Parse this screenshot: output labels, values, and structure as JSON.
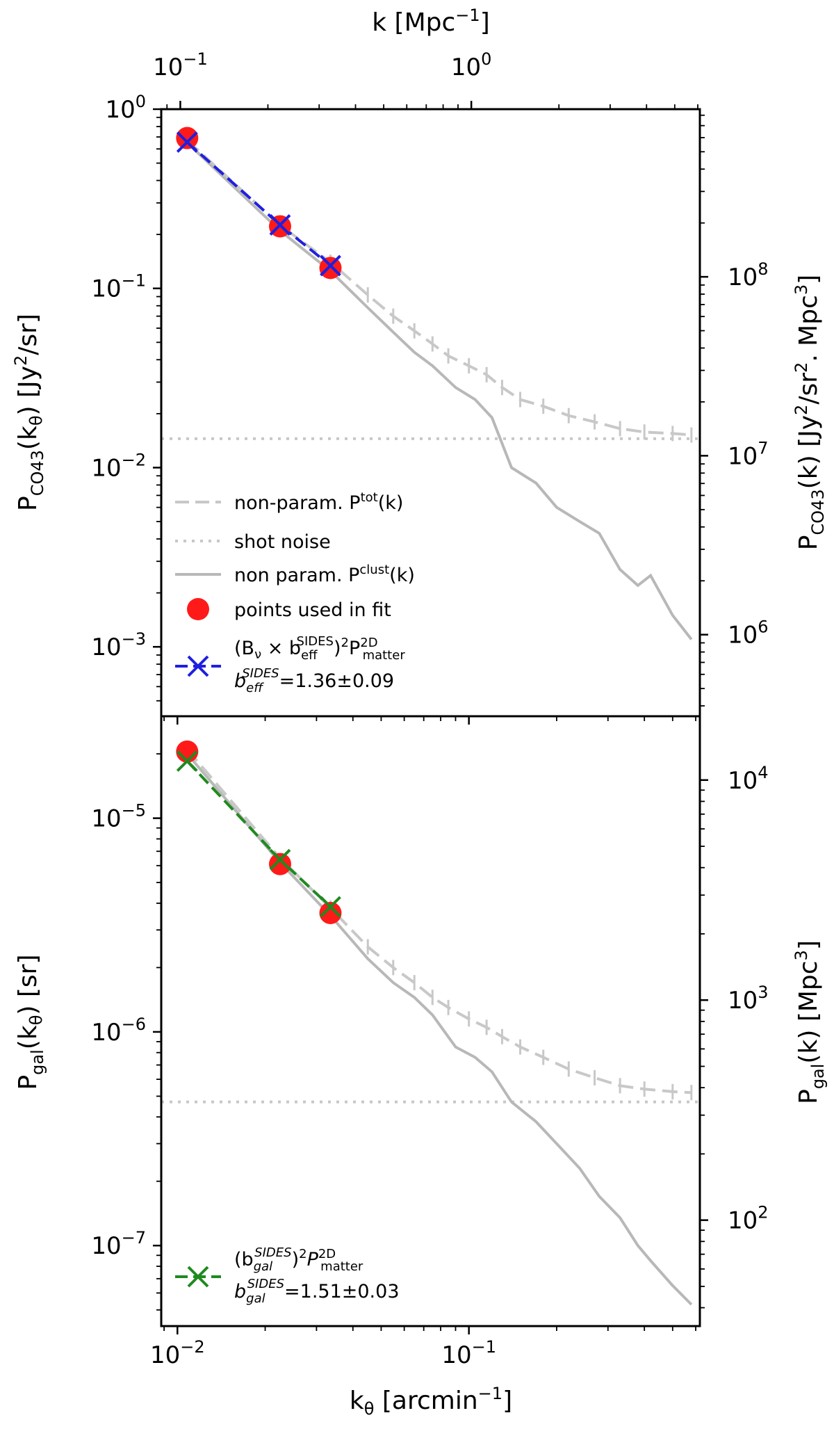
{
  "chart_data": {
    "type": "line",
    "x_axis": {
      "label_main": "k",
      "label_sub": "θ",
      "label_unit": " [arcmin",
      "label_exp": "−1",
      "label_close": "]",
      "scale": "log",
      "xlim": [
        0.0088,
        0.62
      ],
      "ticks": [
        {
          "value": 0.01,
          "base": "10",
          "exp": "−2"
        },
        {
          "value": 0.1,
          "base": "10",
          "exp": "−1"
        }
      ]
    },
    "top_axis": {
      "label_main": "k [Mpc",
      "label_exp": "−1",
      "label_close": "]",
      "scale": "log",
      "klim": [
        0.086,
        6.1
      ],
      "ticks": [
        {
          "value": 0.1,
          "base": "10",
          "exp": "−1"
        },
        {
          "value": 1,
          "base": "10",
          "exp": "0"
        }
      ]
    },
    "panels": [
      {
        "id": "co43",
        "ylabel_left": {
          "pre": "P",
          "sub": "CO43",
          "mid": "(k",
          "sub2": "θ",
          "post": ") [Jy",
          "sup": "2",
          "post2": "/sr]"
        },
        "ylabel_right": {
          "pre": "P",
          "sub": "CO43",
          "mid": "(k)  [Jy",
          "sup": "2",
          "post": "/sr",
          "sup2": "2",
          "post2": ". Mpc",
          "sup3": "3",
          "post3": "]"
        },
        "scale": "log",
        "ylim": [
          0.00041,
          1.0
        ],
        "yticks_left": [
          {
            "value": 1.0,
            "base": "10",
            "exp": "0"
          },
          {
            "value": 0.1,
            "base": "10",
            "exp": "−1"
          },
          {
            "value": 0.01,
            "base": "10",
            "exp": "−2"
          },
          {
            "value": 0.001,
            "base": "10",
            "exp": "−3"
          }
        ],
        "right_axis": {
          "ylim": [
            350000,
            865000000
          ],
          "ticks": [
            {
              "value": 100000000,
              "base": "10",
              "exp": "8"
            },
            {
              "value": 10000000,
              "base": "10",
              "exp": "7"
            },
            {
              "value": 1000000,
              "base": "10",
              "exp": "6"
            }
          ]
        },
        "shot_noise": 0.0145,
        "series": [
          {
            "name": "non-param. P^tot(k)",
            "style": "dashed",
            "color": "#c8c8c8",
            "x": [
              0.0108,
              0.0225,
              0.0335,
              0.045,
              0.055,
              0.065,
              0.075,
              0.085,
              0.1,
              0.115,
              0.13,
              0.15,
              0.18,
              0.22,
              0.27,
              0.33,
              0.4,
              0.5,
              0.58
            ],
            "y": [
              0.67,
              0.225,
              0.14,
              0.092,
              0.07,
              0.058,
              0.049,
              0.042,
              0.037,
              0.033,
              0.028,
              0.024,
              0.022,
              0.0195,
              0.018,
              0.0165,
              0.0158,
              0.0155,
              0.0152
            ]
          },
          {
            "name": "non param. P^clust(k)",
            "style": "solid",
            "color": "#b8b8b8",
            "x": [
              0.0108,
              0.0225,
              0.0335,
              0.045,
              0.055,
              0.065,
              0.075,
              0.09,
              0.105,
              0.12,
              0.14,
              0.17,
              0.2,
              0.24,
              0.28,
              0.33,
              0.38,
              0.42,
              0.5,
              0.58
            ],
            "y": [
              0.65,
              0.21,
              0.125,
              0.078,
              0.057,
              0.044,
              0.037,
              0.028,
              0.024,
              0.019,
              0.01,
              0.0082,
              0.006,
              0.005,
              0.0043,
              0.0027,
              0.0022,
              0.0025,
              0.0015,
              0.0011
            ]
          },
          {
            "name": "(B_ν × b_eff^SIDES)^2 P^2D_matter",
            "style": "dashed",
            "color": "#1f1fe0",
            "marker": "x",
            "x": [
              0.0108,
              0.0225,
              0.0335
            ],
            "y": [
              0.655,
              0.226,
              0.134
            ]
          }
        ],
        "fit_points": {
          "name": "points used in fit",
          "color": "#ff1a1a",
          "x": [
            0.0108,
            0.0225,
            0.0335
          ],
          "y": [
            0.69,
            0.222,
            0.13
          ]
        },
        "legend": {
          "tot": "non-param. P",
          "tot_sup": "tot",
          "tot_post": "(k)",
          "shot": "shot noise",
          "clust": "non param. P",
          "clust_sup": "clust",
          "clust_post": "(k)",
          "points": "points used in fit",
          "model_line1": "(B",
          "model_nu": "ν",
          "model_times": " × b",
          "model_sub_eff": "eff",
          "model_sup_sides": "SIDES",
          "model_close": ")",
          "model_sq": "2",
          "model_p": "P",
          "model_sup_2d": "2D",
          "model_sub_matter": "matter",
          "bias_b": "b",
          "bias_sub": "eff",
          "bias_sup": "SIDES",
          "bias_val": "=1.36±0.09"
        }
      },
      {
        "id": "gal",
        "ylabel_left": {
          "pre": "P",
          "sub": "gal",
          "mid": "(k",
          "sub2": "θ",
          "post": ") [sr]"
        },
        "ylabel_right": {
          "pre": "P",
          "sub": "gal",
          "mid": "(k) [Mpc",
          "sup": "3",
          "post": "]"
        },
        "scale": "log",
        "ylim": [
          4.2e-08,
          3e-05
        ],
        "yticks_left": [
          {
            "value": 1e-05,
            "base": "10",
            "exp": "−5"
          },
          {
            "value": 1e-06,
            "base": "10",
            "exp": "−6"
          },
          {
            "value": 1e-07,
            "base": "10",
            "exp": "−7"
          }
        ],
        "right_axis": {
          "ylim": [
            33,
            19500
          ],
          "ticks": [
            {
              "value": 10000,
              "base": "10",
              "exp": "4"
            },
            {
              "value": 1000,
              "base": "10",
              "exp": "3"
            },
            {
              "value": 100,
              "base": "10",
              "exp": "2"
            }
          ]
        },
        "shot_noise": 4.7e-07,
        "series": [
          {
            "name": "non-param. P^tot(k)",
            "style": "dashed",
            "color": "#c8c8c8",
            "x": [
              0.0108,
              0.0225,
              0.0335,
              0.045,
              0.055,
              0.065,
              0.075,
              0.085,
              0.1,
              0.115,
              0.13,
              0.15,
              0.18,
              0.22,
              0.27,
              0.33,
              0.4,
              0.5,
              0.58
            ],
            "y": [
              2.1e-05,
              6.5e-06,
              3.8e-06,
              2.5e-06,
              2e-06,
              1.7e-06,
              1.45e-06,
              1.3e-06,
              1.15e-06,
              1.05e-06,
              9.5e-07,
              8.5e-07,
              7.6e-07,
              6.7e-07,
              6.1e-07,
              5.6e-07,
              5.4e-07,
              5.25e-07,
              5.2e-07
            ]
          },
          {
            "name": "non param. P^clust(k)",
            "style": "solid",
            "color": "#b8b8b8",
            "x": [
              0.0108,
              0.0225,
              0.0335,
              0.045,
              0.055,
              0.065,
              0.075,
              0.09,
              0.105,
              0.12,
              0.14,
              0.17,
              0.2,
              0.24,
              0.28,
              0.33,
              0.38,
              0.42,
              0.5,
              0.58
            ],
            "y": [
              2e-05,
              6.2e-06,
              3.5e-06,
              2.2e-06,
              1.7e-06,
              1.45e-06,
              1.2e-06,
              8.5e-07,
              7.6e-07,
              6.5e-07,
              4.7e-07,
              3.8e-07,
              3e-07,
              2.3e-07,
              1.7e-07,
              1.35e-07,
              1e-07,
              8.5e-08,
              6.5e-08,
              5.3e-08
            ]
          },
          {
            "name": "(b_gal^SIDES)^2 P^2D_matter",
            "style": "dashed",
            "color": "#1f8a1f",
            "marker": "x",
            "x": [
              0.0108,
              0.0225,
              0.0335
            ],
            "y": [
              1.85e-05,
              6.4e-06,
              3.85e-06
            ]
          }
        ],
        "fit_points": {
          "name": "points used in fit",
          "color": "#ff1a1a",
          "x": [
            0.0108,
            0.0225,
            0.0335
          ],
          "y": [
            2.05e-05,
            6.1e-06,
            3.6e-06
          ]
        },
        "legend": {
          "model_line1": "(b",
          "model_sub_gal": "gal",
          "model_sup_sides": "SIDES",
          "model_close": ")",
          "model_sq": "2",
          "model_p": "P",
          "model_sup_2d": "2D",
          "model_sub_matter": "matter",
          "bias_b": "b",
          "bias_sub": "gal",
          "bias_sup": "SIDES",
          "bias_val": "=1.51±0.03"
        }
      }
    ]
  }
}
